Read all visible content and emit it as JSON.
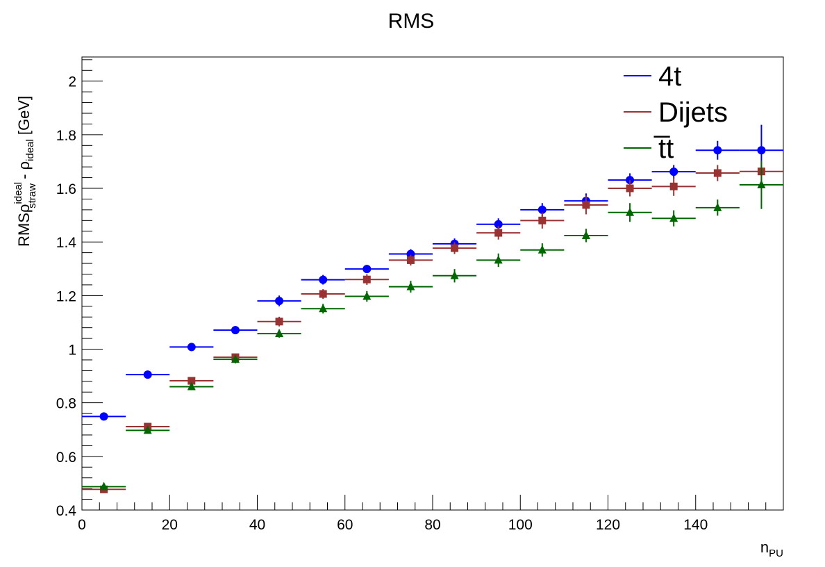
{
  "chart_data": {
    "type": "scatter",
    "title": "RMS",
    "xlabel": {
      "main": "n",
      "sub": "PU"
    },
    "ylabel": {
      "prefix": "RMSρ",
      "sup": "ideal",
      "sub": "straw",
      "mid": " - ρ",
      "sub2": "ideal",
      "suffix": " [GeV]"
    },
    "xlim": [
      0,
      160
    ],
    "ylim": [
      0.4,
      2.09
    ],
    "xticks": [
      "0",
      "20",
      "40",
      "60",
      "80",
      "100",
      "120",
      "140"
    ],
    "xtick_values": [
      0,
      20,
      40,
      60,
      80,
      100,
      120,
      140
    ],
    "yticks": [
      "0.4",
      "0.6",
      "0.8",
      "1",
      "1.2",
      "1.4",
      "1.6",
      "1.8",
      "2"
    ],
    "ytick_values": [
      0.4,
      0.6,
      0.8,
      1.0,
      1.2,
      1.4,
      1.6,
      1.8,
      2.0
    ],
    "grid": false,
    "legend_position": "top-right",
    "x": [
      5,
      15,
      25,
      35,
      45,
      55,
      65,
      75,
      85,
      95,
      105,
      115,
      125,
      135,
      145,
      155
    ],
    "x_bin_half_width": 5,
    "series": [
      {
        "name": "4t",
        "color": "#0000ff",
        "marker": "circle",
        "values": [
          0.749,
          0.905,
          1.008,
          1.071,
          1.18,
          1.259,
          1.299,
          1.355,
          1.393,
          1.466,
          1.52,
          1.553,
          1.631,
          1.662,
          1.742,
          1.742
        ],
        "errors": [
          0.006,
          0.01,
          0.015,
          0.015,
          0.02,
          0.018,
          0.015,
          0.018,
          0.02,
          0.022,
          0.025,
          0.028,
          0.025,
          0.025,
          0.035,
          0.095
        ]
      },
      {
        "name": "Dijets",
        "color": "#993333",
        "marker": "square",
        "values": [
          0.477,
          0.711,
          0.882,
          0.97,
          1.103,
          1.206,
          1.26,
          1.332,
          1.377,
          1.434,
          1.48,
          1.538,
          1.6,
          1.607,
          1.657,
          1.663
        ],
        "errors": [
          0.008,
          0.01,
          0.012,
          0.012,
          0.018,
          0.018,
          0.02,
          0.02,
          0.022,
          0.025,
          0.03,
          0.035,
          0.03,
          0.035,
          0.03,
          0.04
        ]
      },
      {
        "name": "t̅t",
        "color": "#006600",
        "marker": "triangle",
        "values": [
          0.487,
          0.697,
          0.86,
          0.962,
          1.058,
          1.151,
          1.197,
          1.233,
          1.274,
          1.332,
          1.37,
          1.424,
          1.51,
          1.488,
          1.528,
          1.613
        ],
        "errors": [
          0.008,
          0.012,
          0.012,
          0.015,
          0.015,
          0.018,
          0.02,
          0.022,
          0.025,
          0.025,
          0.025,
          0.025,
          0.035,
          0.03,
          0.03,
          0.09
        ]
      }
    ]
  }
}
